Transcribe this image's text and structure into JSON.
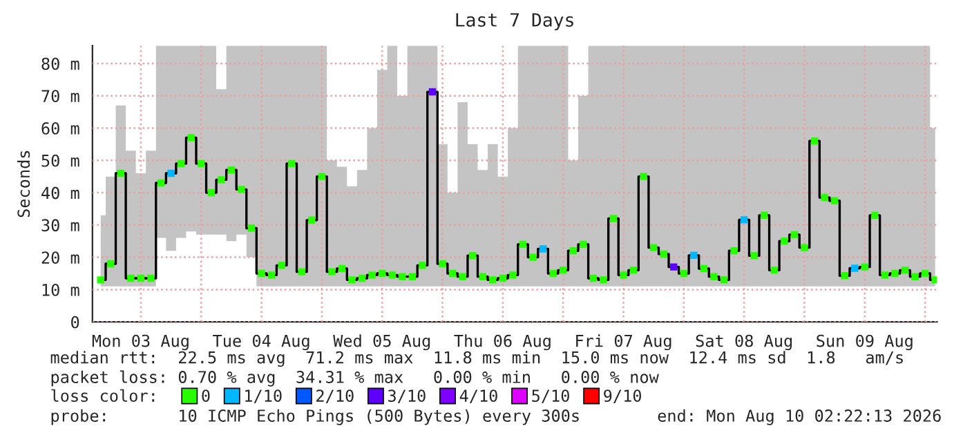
{
  "chart_data": {
    "type": "step",
    "title": "Last 7 Days",
    "ylabel": "Seconds",
    "x": [
      "2026-08-03T04:00",
      "2026-08-03T06:00",
      "2026-08-03T08:00",
      "2026-08-03T10:00",
      "2026-08-03T12:00",
      "2026-08-03T14:00",
      "2026-08-03T16:00",
      "2026-08-03T18:00",
      "2026-08-03T20:00",
      "2026-08-03T22:00",
      "2026-08-04T00:00",
      "2026-08-04T02:00",
      "2026-08-04T04:00",
      "2026-08-04T06:00",
      "2026-08-04T08:00",
      "2026-08-04T10:00",
      "2026-08-04T12:00",
      "2026-08-04T14:00",
      "2026-08-04T16:00",
      "2026-08-04T18:00",
      "2026-08-04T20:00",
      "2026-08-04T22:00",
      "2026-08-05T00:00",
      "2026-08-05T02:00",
      "2026-08-05T04:00",
      "2026-08-05T06:00",
      "2026-08-05T08:00",
      "2026-08-05T10:00",
      "2026-08-05T12:00",
      "2026-08-05T14:00",
      "2026-08-05T16:00",
      "2026-08-05T18:00",
      "2026-08-05T20:00",
      "2026-08-05T22:00",
      "2026-08-06T00:00",
      "2026-08-06T02:00",
      "2026-08-06T04:00",
      "2026-08-06T06:00",
      "2026-08-06T08:00",
      "2026-08-06T10:00",
      "2026-08-06T12:00",
      "2026-08-06T14:00",
      "2026-08-06T16:00",
      "2026-08-06T18:00",
      "2026-08-06T20:00",
      "2026-08-06T22:00",
      "2026-08-07T00:00",
      "2026-08-07T02:00",
      "2026-08-07T04:00",
      "2026-08-07T06:00",
      "2026-08-07T08:00",
      "2026-08-07T10:00",
      "2026-08-07T12:00",
      "2026-08-07T14:00",
      "2026-08-07T16:00",
      "2026-08-07T18:00",
      "2026-08-07T20:00",
      "2026-08-07T22:00",
      "2026-08-08T00:00",
      "2026-08-08T02:00",
      "2026-08-08T04:00",
      "2026-08-08T06:00",
      "2026-08-08T08:00",
      "2026-08-08T10:00",
      "2026-08-08T12:00",
      "2026-08-08T14:00",
      "2026-08-08T16:00",
      "2026-08-08T18:00",
      "2026-08-08T20:00",
      "2026-08-08T22:00",
      "2026-08-09T00:00",
      "2026-08-09T02:00",
      "2026-08-09T04:00",
      "2026-08-09T06:00",
      "2026-08-09T08:00",
      "2026-08-09T10:00",
      "2026-08-09T12:00",
      "2026-08-09T14:00",
      "2026-08-09T16:00",
      "2026-08-09T18:00",
      "2026-08-09T20:00",
      "2026-08-09T22:00",
      "2026-08-10T00:00",
      "2026-08-10T02:00"
    ],
    "series": [
      {
        "color": "#000000",
        "marker": "none",
        "values": [
          13,
          18,
          46,
          13.5,
          13.5,
          13.5,
          43,
          46,
          49,
          57,
          49,
          40,
          44,
          47,
          41,
          29,
          15,
          14.5,
          17.5,
          49,
          15.5,
          31.5,
          45,
          15.5,
          16.5,
          13,
          13.5,
          14.5,
          15,
          14.5,
          14,
          14,
          17.5,
          71.2,
          18,
          15,
          14,
          20.5,
          14,
          13,
          13.5,
          14.5,
          24,
          20,
          22.6,
          15,
          16,
          22,
          24,
          13.5,
          13,
          32,
          14.5,
          16,
          45,
          23,
          21,
          17,
          15,
          20.6,
          16.5,
          14,
          13,
          22,
          31.6,
          20.5,
          33,
          16,
          25,
          27,
          23,
          56,
          38.5,
          37.5,
          14.3,
          16.6,
          17,
          33,
          14.5,
          15,
          16,
          14,
          15,
          13
        ],
        "lower": [
          11,
          11,
          11,
          11,
          11,
          11,
          26,
          22,
          26,
          28,
          27,
          27,
          27,
          25,
          27,
          20,
          11,
          11,
          11,
          11,
          11,
          11,
          11,
          11,
          11,
          11,
          11,
          11,
          11,
          11,
          11,
          11,
          11,
          11,
          11,
          11,
          11,
          11,
          11,
          11,
          11,
          11,
          11,
          11,
          11,
          11,
          11,
          11,
          11,
          11,
          11,
          11,
          11,
          11,
          11,
          11,
          11,
          11,
          11,
          11,
          11,
          11,
          11,
          11,
          11,
          11,
          11,
          11,
          11,
          11,
          11,
          11,
          11,
          11,
          11,
          11,
          11,
          11,
          11,
          11,
          11,
          11,
          11,
          11
        ],
        "upper": [
          33,
          45,
          67,
          53,
          46,
          53,
          85.5,
          85.5,
          85.5,
          85.5,
          85.5,
          85.5,
          72,
          85.5,
          85.5,
          85.5,
          85.5,
          85.5,
          85.5,
          85.5,
          85.5,
          85.5,
          85.5,
          50,
          48,
          42,
          47,
          60,
          78,
          85.5,
          70,
          85.5,
          85.5,
          85.5,
          55,
          40,
          68,
          55,
          47,
          55,
          45,
          60,
          85.5,
          85.5,
          85.5,
          85.5,
          85.5,
          50,
          70,
          85.5,
          85.5,
          85.5,
          85.5,
          85.5,
          85.5,
          85.5,
          85.5,
          85.5,
          85.5,
          85.5,
          85.5,
          85.5,
          85.5,
          85.5,
          85.5,
          85.5,
          85.5,
          85.5,
          85.5,
          85.5,
          85.5,
          85.5,
          85.5,
          85.5,
          85.5,
          85.5,
          85.5,
          85.5,
          85.5,
          85.5,
          85.5,
          85.5,
          85.5,
          60
        ]
      },
      {
        "type": "scatter",
        "name": "0",
        "color": "#26ff00",
        "values": [
          13,
          18,
          46,
          13.5,
          13.5,
          13.5,
          43,
          null,
          49,
          57,
          49,
          40,
          44,
          47,
          41,
          29,
          15,
          14.5,
          17.5,
          49,
          15.5,
          31.5,
          45,
          15.5,
          16.5,
          13,
          13.5,
          14.5,
          15,
          14.5,
          14,
          14,
          17.5,
          null,
          18,
          15,
          14,
          20.5,
          14,
          13,
          13.5,
          14.5,
          24,
          20,
          null,
          15,
          16,
          22,
          24,
          13.5,
          13,
          32,
          14.5,
          16,
          45,
          23,
          21,
          null,
          15,
          null,
          16.5,
          14,
          13,
          22,
          null,
          20.5,
          33,
          16,
          25,
          27,
          23,
          56,
          38.5,
          37.5,
          14.3,
          null,
          17,
          33,
          14.5,
          15,
          16,
          14,
          15,
          13
        ]
      },
      {
        "type": "scatter",
        "name": "1/10",
        "color": "#00b8ff",
        "x": [
          "2026-08-03T18:00",
          "2026-08-06T20:00",
          "2026-08-08T02:00",
          "2026-08-08T12:00",
          "2026-08-09T10:00"
        ],
        "values": [
          46,
          22.6,
          20.6,
          31.6,
          16.6
        ]
      },
      {
        "type": "scatter",
        "name": "2/10",
        "color": "#0059ff",
        "values": [
          null,
          null,
          null,
          null,
          null,
          null,
          null,
          null,
          null,
          null,
          null,
          null,
          null,
          null,
          null,
          null,
          null,
          null,
          null,
          null,
          null,
          null,
          null,
          null,
          null,
          null,
          null,
          null,
          null,
          null,
          null,
          null,
          null,
          null,
          null,
          null,
          null,
          null,
          null,
          null,
          null,
          null,
          null,
          null,
          null,
          null,
          null,
          null,
          null,
          null,
          null,
          null,
          null,
          null,
          null,
          null,
          null,
          null,
          null,
          null,
          null,
          null,
          null,
          null,
          null,
          null,
          null,
          null,
          null,
          null,
          null,
          null,
          null,
          null,
          null,
          null,
          null,
          null,
          null,
          null,
          null,
          null,
          null,
          null
        ]
      },
      {
        "type": "scatter",
        "name": "3/10",
        "color": "#5e00ff",
        "x": [
          "2026-08-05T22:00",
          "2026-08-07T22:00"
        ],
        "values": [
          71.2,
          17
        ]
      },
      {
        "type": "scatter",
        "name": "4/10",
        "color": "#7e00ff",
        "values": [
          null,
          null,
          null,
          null,
          null,
          null,
          null,
          null,
          null,
          null,
          null,
          null,
          null,
          null,
          null,
          null,
          null,
          null,
          null,
          null,
          null,
          null,
          null,
          null,
          null,
          null,
          null,
          null,
          null,
          null,
          null,
          null,
          null,
          null,
          null,
          null,
          null,
          null,
          null,
          null,
          null,
          null,
          null,
          null,
          null,
          null,
          null,
          null,
          null,
          null,
          null,
          null,
          null,
          null,
          null,
          null,
          null,
          null,
          null,
          null,
          null,
          null,
          null,
          null,
          null,
          null,
          null,
          null,
          null,
          null,
          null,
          null,
          null,
          null,
          null,
          null,
          null,
          null,
          null,
          null,
          null,
          null,
          null,
          null
        ]
      },
      {
        "type": "scatter",
        "name": "5/10",
        "color": "#dd00ff",
        "values": [
          null,
          null,
          null,
          null,
          null,
          null,
          null,
          null,
          null,
          null,
          null,
          null,
          null,
          null,
          null,
          null,
          null,
          null,
          null,
          null,
          null,
          null,
          null,
          null,
          null,
          null,
          null,
          null,
          null,
          null,
          null,
          null,
          null,
          null,
          null,
          null,
          null,
          null,
          null,
          null,
          null,
          null,
          null,
          null,
          null,
          null,
          null,
          null,
          null,
          null,
          null,
          null,
          null,
          null,
          null,
          null,
          null,
          null,
          null,
          null,
          null,
          null,
          null,
          null,
          null,
          null,
          null,
          null,
          null,
          null,
          null,
          null,
          null,
          null,
          null,
          null,
          null,
          null,
          null,
          null,
          null,
          null,
          null,
          null
        ]
      },
      {
        "type": "scatter",
        "name": "9/10",
        "color": "#ff0000",
        "values": [
          null,
          null,
          null,
          null,
          null,
          null,
          null,
          null,
          null,
          null,
          null,
          null,
          null,
          null,
          null,
          null,
          null,
          null,
          null,
          null,
          null,
          null,
          null,
          null,
          null,
          null,
          null,
          null,
          null,
          null,
          null,
          null,
          null,
          null,
          null,
          null,
          null,
          null,
          null,
          null,
          null,
          null,
          null,
          null,
          null,
          null,
          null,
          null,
          null,
          null,
          null,
          null,
          null,
          null,
          null,
          null,
          null,
          null,
          null,
          null,
          null,
          null,
          null,
          null,
          null,
          null,
          null,
          null,
          null,
          null,
          null,
          null,
          null,
          null,
          null,
          null,
          null,
          null,
          null,
          null,
          null,
          null,
          null,
          null
        ]
      }
    ],
    "legend": "bottom",
    "legend_title": "loss color:",
    "marker": "square",
    "grid": true,
    "xlim": [
      "2026-08-03T02:22",
      "2026-08-10T02:22"
    ],
    "xticks": [
      {
        "value": "2026-08-03T12:00",
        "label": "Mon 03 Aug"
      },
      {
        "value": "2026-08-04T00:00",
        "label": null
      },
      {
        "value": "2026-08-04T12:00",
        "label": "Tue 04 Aug"
      },
      {
        "value": "2026-08-05T00:00",
        "label": null
      },
      {
        "value": "2026-08-05T12:00",
        "label": "Wed 05 Aug"
      },
      {
        "value": "2026-08-06T00:00",
        "label": null
      },
      {
        "value": "2026-08-06T12:00",
        "label": "Thu 06 Aug"
      },
      {
        "value": "2026-08-07T00:00",
        "label": null
      },
      {
        "value": "2026-08-07T12:00",
        "label": "Fri 07 Aug"
      },
      {
        "value": "2026-08-08T00:00",
        "label": null
      },
      {
        "value": "2026-08-08T12:00",
        "label": "Sat 08 Aug"
      },
      {
        "value": "2026-08-09T00:00",
        "label": null
      },
      {
        "value": "2026-08-09T12:00",
        "label": "Sun 09 Aug"
      },
      {
        "value": "2026-08-10T00:00",
        "label": null
      }
    ],
    "ylim": [
      0,
      85.5
    ],
    "yticks": [
      0,
      {
        "value": 10,
        "label": "10 m"
      },
      {
        "value": 20,
        "label": "20 m"
      },
      {
        "value": 30,
        "label": "30 m"
      },
      {
        "value": 40,
        "label": "40 m"
      },
      {
        "value": 50,
        "label": "50 m"
      },
      {
        "value": 60,
        "label": "60 m"
      },
      {
        "value": 70,
        "label": "70 m"
      },
      {
        "value": 80,
        "label": "80 m"
      }
    ],
    "annotations": [
      "median rtt:  22.5 ms avg  71.2 ms max  11.8 ms min  15.0 ms now  12.4 ms sd  1.8   am/s",
      "packet loss: 0.70 % avg  34.31 % max   0.00 % min   0.00 % now",
      "probe:       10 ICMP Echo Pings (500 Bytes) every 300s",
      "end: Mon Aug 10 02:22:13 2026"
    ]
  }
}
